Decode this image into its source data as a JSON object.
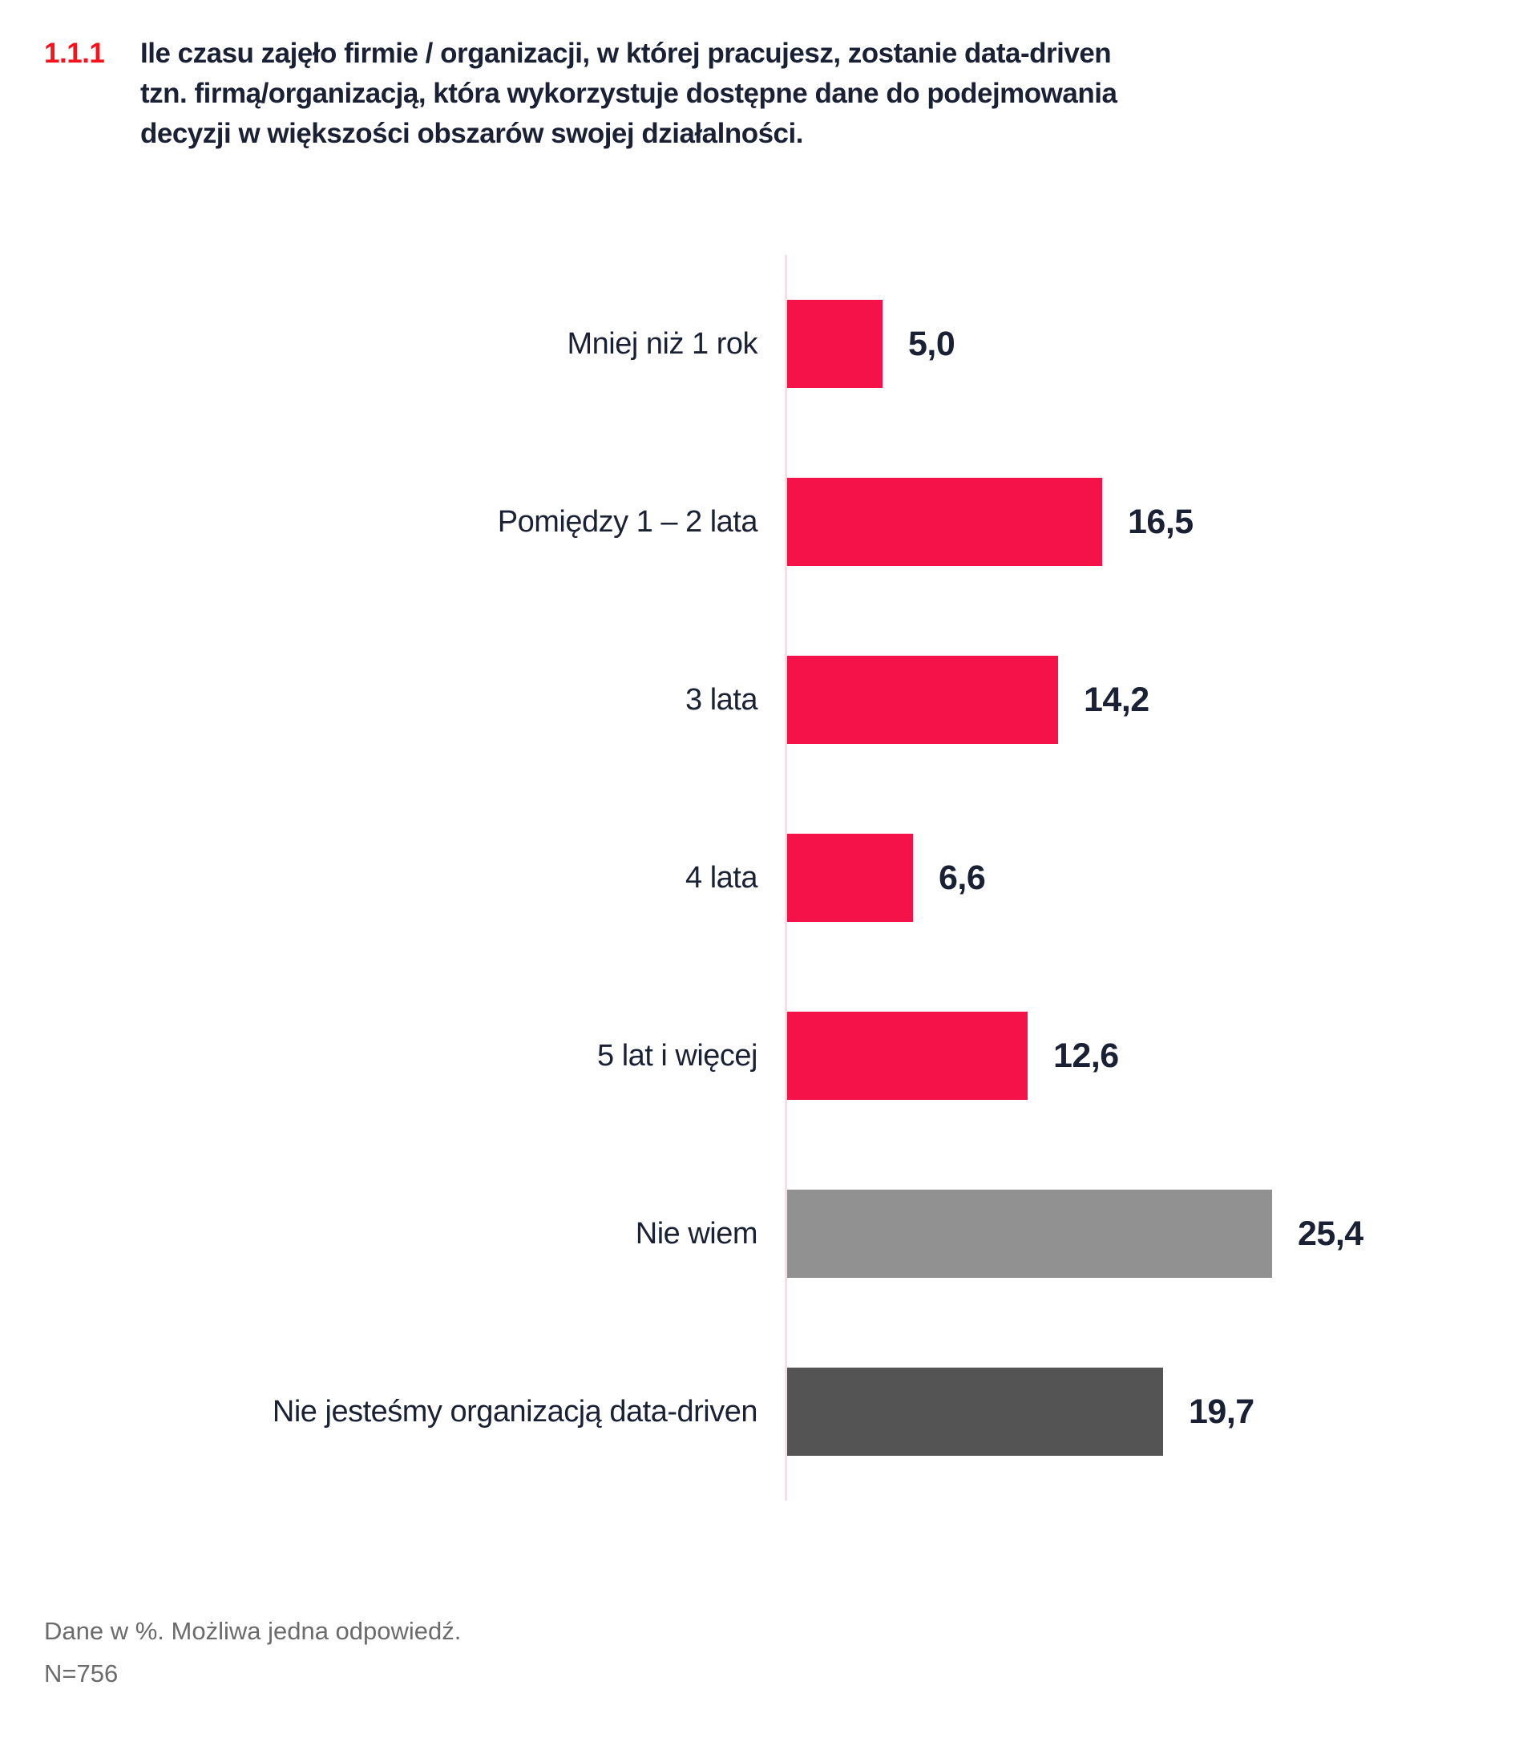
{
  "header": {
    "question_number": "1.1.1",
    "title_lines": [
      "Ile czasu zajęło firmie / organizacji, w której pracujesz, zostanie data-driven",
      "tzn. firmą/organizacją, która wykorzystuje dostępne dane do podejmowania",
      "decyzji w większości obszarów swojej działalności."
    ]
  },
  "chart_data": {
    "type": "bar",
    "orientation": "horizontal",
    "title": "Ile czasu zajęło firmie / organizacji, w której pracujesz, zostanie data-driven tzn. firmą/organizacją, która wykorzystuje dostępne dane do podejmowania decyzji w większości obszarów swojej działalności.",
    "categories": [
      "Mniej niż 1 rok",
      "Pomiędzy 1 – 2 lata",
      "3 lata",
      "4 lata",
      "5 lat i więcej",
      "Nie wiem",
      "Nie jesteśmy organizacją data-driven"
    ],
    "values": [
      5.0,
      16.5,
      14.2,
      6.6,
      12.6,
      25.4,
      19.7
    ],
    "value_labels": [
      "5,0",
      "16,5",
      "14,2",
      "6,6",
      "12,6",
      "25,4",
      "19,7"
    ],
    "bar_colors": [
      "#f41249",
      "#f41249",
      "#f41249",
      "#f41249",
      "#f41249",
      "#919191",
      "#545454"
    ],
    "unit": "%",
    "xlim": [
      0,
      28
    ],
    "grid": false,
    "legend": false
  },
  "footer": {
    "note": "Dane w %. Możliwa jedna odpowiedź.",
    "sample": "N=756"
  },
  "colors": {
    "accent_red": "#f8121b",
    "bar_red": "#f41249",
    "bar_gray": "#919191",
    "bar_dark_gray": "#545454",
    "text_navy": "#1b2134",
    "axis_pink": "#fbdce2",
    "footer_gray": "#6b6b6b"
  }
}
